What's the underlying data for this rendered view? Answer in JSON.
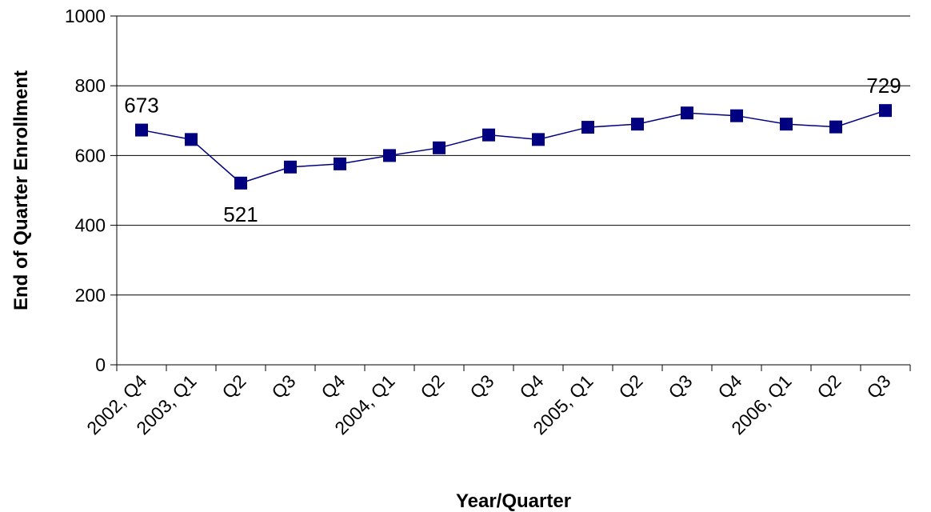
{
  "chart_data": {
    "type": "line",
    "title": "",
    "xlabel": "Year/Quarter",
    "ylabel": "End of Quarter Enrollment",
    "categories": [
      "2002, Q4",
      "2003, Q1",
      "Q2",
      "Q3",
      "Q4",
      "2004, Q1",
      "Q2",
      "Q3",
      "Q4",
      "2005, Q1",
      "Q2",
      "Q3",
      "Q4",
      "2006, Q1",
      "Q2",
      "Q3"
    ],
    "series": [
      {
        "values": [
          673,
          646,
          521,
          567,
          576,
          600,
          622,
          659,
          646,
          681,
          690,
          722,
          714,
          690,
          682,
          729
        ],
        "color": "#000080"
      }
    ],
    "data_labels": [
      {
        "index": 0,
        "text": "673",
        "position": "above"
      },
      {
        "index": 2,
        "text": "521",
        "position": "below"
      },
      {
        "index": 15,
        "text": "729",
        "position": "above"
      }
    ],
    "ylim": [
      0,
      1000
    ],
    "yticks": [
      0,
      200,
      400,
      600,
      800,
      1000
    ],
    "grid": "horizontal",
    "legend": "none",
    "marker": "square"
  }
}
